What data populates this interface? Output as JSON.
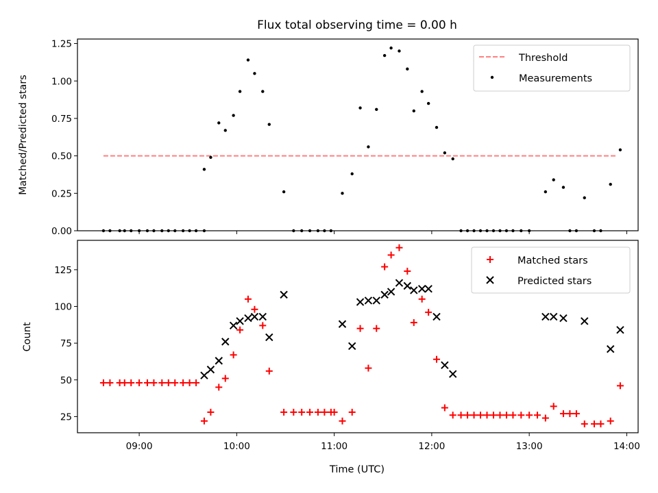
{
  "chart_data": {
    "title": "Flux total observing time = 0.00 h",
    "xlabel": "Time (UTC)",
    "x_ticks": [
      "09:00",
      "10:00",
      "11:00",
      "12:00",
      "13:00",
      "14:00"
    ],
    "xlim": [
      "08:22",
      "14:07"
    ],
    "panels": [
      {
        "type": "scatter",
        "ylabel": "Matched/Predicted stars",
        "ylim": [
          0,
          1.28
        ],
        "y_ticks": [
          "0.00",
          "0.25",
          "0.50",
          "0.75",
          "1.00",
          "1.25"
        ],
        "y_tick_values": [
          0,
          0.25,
          0.5,
          0.75,
          1.0,
          1.25
        ],
        "legend_position": "top-right",
        "threshold": {
          "name": "Threshold",
          "value": 0.5,
          "x_start": "08:38",
          "x_end": "13:54",
          "color": "#ff7f7f"
        },
        "series": [
          {
            "name": "Measurements",
            "color": "#000000",
            "marker": "dot",
            "points": [
              [
                "08:38",
                0.0
              ],
              [
                "08:42",
                0.0
              ],
              [
                "08:48",
                0.0
              ],
              [
                "08:51",
                0.0
              ],
              [
                "08:55",
                0.0
              ],
              [
                "09:00",
                0.0
              ],
              [
                "09:05",
                0.0
              ],
              [
                "09:09",
                0.0
              ],
              [
                "09:14",
                0.0
              ],
              [
                "09:18",
                0.0
              ],
              [
                "09:22",
                0.0
              ],
              [
                "09:27",
                0.0
              ],
              [
                "09:31",
                0.0
              ],
              [
                "09:35",
                0.0
              ],
              [
                "09:40",
                0.0
              ],
              [
                "09:40",
                0.41
              ],
              [
                "09:44",
                0.49
              ],
              [
                "09:49",
                0.72
              ],
              [
                "09:53",
                0.67
              ],
              [
                "09:58",
                0.77
              ],
              [
                "10:02",
                0.93
              ],
              [
                "10:07",
                1.14
              ],
              [
                "10:11",
                1.05
              ],
              [
                "10:16",
                0.93
              ],
              [
                "10:20",
                0.71
              ],
              [
                "10:29",
                0.26
              ],
              [
                "10:35",
                0.0
              ],
              [
                "10:40",
                0.0
              ],
              [
                "10:45",
                0.0
              ],
              [
                "10:50",
                0.0
              ],
              [
                "10:54",
                0.0
              ],
              [
                "10:58",
                0.0
              ],
              [
                "11:05",
                0.25
              ],
              [
                "11:11",
                0.38
              ],
              [
                "11:16",
                0.82
              ],
              [
                "11:21",
                0.56
              ],
              [
                "11:26",
                0.81
              ],
              [
                "11:31",
                1.17
              ],
              [
                "11:35",
                1.22
              ],
              [
                "11:40",
                1.2
              ],
              [
                "11:45",
                1.08
              ],
              [
                "11:49",
                0.8
              ],
              [
                "11:54",
                0.93
              ],
              [
                "11:58",
                0.85
              ],
              [
                "12:03",
                0.69
              ],
              [
                "12:08",
                0.52
              ],
              [
                "12:13",
                0.48
              ],
              [
                "12:18",
                0.0
              ],
              [
                "12:22",
                0.0
              ],
              [
                "12:26",
                0.0
              ],
              [
                "12:30",
                0.0
              ],
              [
                "12:34",
                0.0
              ],
              [
                "12:38",
                0.0
              ],
              [
                "12:42",
                0.0
              ],
              [
                "12:46",
                0.0
              ],
              [
                "12:50",
                0.0
              ],
              [
                "12:55",
                0.0
              ],
              [
                "13:00",
                0.0
              ],
              [
                "13:10",
                0.26
              ],
              [
                "13:15",
                0.34
              ],
              [
                "13:21",
                0.29
              ],
              [
                "13:25",
                0.0
              ],
              [
                "13:29",
                0.0
              ],
              [
                "13:34",
                0.22
              ],
              [
                "13:40",
                0.0
              ],
              [
                "13:44",
                0.0
              ],
              [
                "13:50",
                0.31
              ],
              [
                "13:56",
                0.54
              ]
            ]
          }
        ]
      },
      {
        "type": "scatter",
        "ylabel": "Count",
        "ylim": [
          14,
          145
        ],
        "y_ticks": [
          "25",
          "50",
          "75",
          "100",
          "125"
        ],
        "y_tick_values": [
          25,
          50,
          75,
          100,
          125
        ],
        "legend_position": "top-right",
        "series": [
          {
            "name": "Matched stars",
            "color": "#ff0000",
            "marker": "plus",
            "points": [
              [
                "08:38",
                48
              ],
              [
                "08:42",
                48
              ],
              [
                "08:48",
                48
              ],
              [
                "08:51",
                48
              ],
              [
                "08:55",
                48
              ],
              [
                "09:00",
                48
              ],
              [
                "09:05",
                48
              ],
              [
                "09:09",
                48
              ],
              [
                "09:14",
                48
              ],
              [
                "09:18",
                48
              ],
              [
                "09:22",
                48
              ],
              [
                "09:27",
                48
              ],
              [
                "09:31",
                48
              ],
              [
                "09:35",
                48
              ],
              [
                "09:40",
                22
              ],
              [
                "09:44",
                28
              ],
              [
                "09:49",
                45
              ],
              [
                "09:53",
                51
              ],
              [
                "09:58",
                67
              ],
              [
                "10:02",
                84
              ],
              [
                "10:07",
                105
              ],
              [
                "10:11",
                98
              ],
              [
                "10:16",
                87
              ],
              [
                "10:20",
                56
              ],
              [
                "10:29",
                28
              ],
              [
                "10:35",
                28
              ],
              [
                "10:40",
                28
              ],
              [
                "10:45",
                28
              ],
              [
                "10:50",
                28
              ],
              [
                "10:54",
                28
              ],
              [
                "10:58",
                28
              ],
              [
                "11:00",
                28
              ],
              [
                "11:05",
                22
              ],
              [
                "11:11",
                28
              ],
              [
                "11:16",
                85
              ],
              [
                "11:21",
                58
              ],
              [
                "11:26",
                85
              ],
              [
                "11:31",
                127
              ],
              [
                "11:35",
                135
              ],
              [
                "11:40",
                140
              ],
              [
                "11:45",
                124
              ],
              [
                "11:49",
                89
              ],
              [
                "11:54",
                105
              ],
              [
                "11:58",
                96
              ],
              [
                "12:03",
                64
              ],
              [
                "12:08",
                31
              ],
              [
                "12:13",
                26
              ],
              [
                "12:18",
                26
              ],
              [
                "12:22",
                26
              ],
              [
                "12:26",
                26
              ],
              [
                "12:30",
                26
              ],
              [
                "12:34",
                26
              ],
              [
                "12:38",
                26
              ],
              [
                "12:42",
                26
              ],
              [
                "12:46",
                26
              ],
              [
                "12:50",
                26
              ],
              [
                "12:55",
                26
              ],
              [
                "13:00",
                26
              ],
              [
                "13:05",
                26
              ],
              [
                "13:10",
                24
              ],
              [
                "13:15",
                32
              ],
              [
                "13:21",
                27
              ],
              [
                "13:25",
                27
              ],
              [
                "13:29",
                27
              ],
              [
                "13:34",
                20
              ],
              [
                "13:40",
                20
              ],
              [
                "13:44",
                20
              ],
              [
                "13:50",
                22
              ],
              [
                "13:56",
                46
              ]
            ]
          },
          {
            "name": "Predicted stars",
            "color": "#000000",
            "marker": "x",
            "points": [
              [
                "09:40",
                53
              ],
              [
                "09:44",
                57
              ],
              [
                "09:49",
                63
              ],
              [
                "09:53",
                76
              ],
              [
                "09:58",
                87
              ],
              [
                "10:02",
                90
              ],
              [
                "10:07",
                92
              ],
              [
                "10:11",
                93
              ],
              [
                "10:16",
                93
              ],
              [
                "10:20",
                79
              ],
              [
                "10:29",
                108
              ],
              [
                "11:05",
                88
              ],
              [
                "11:11",
                73
              ],
              [
                "11:16",
                103
              ],
              [
                "11:21",
                104
              ],
              [
                "11:26",
                104
              ],
              [
                "11:31",
                108
              ],
              [
                "11:35",
                110
              ],
              [
                "11:40",
                116
              ],
              [
                "11:45",
                114
              ],
              [
                "11:49",
                111
              ],
              [
                "11:54",
                112
              ],
              [
                "11:58",
                112
              ],
              [
                "12:03",
                93
              ],
              [
                "12:08",
                60
              ],
              [
                "12:13",
                54
              ],
              [
                "13:10",
                93
              ],
              [
                "13:15",
                93
              ],
              [
                "13:21",
                92
              ],
              [
                "13:34",
                90
              ],
              [
                "13:50",
                71
              ],
              [
                "13:56",
                84
              ]
            ]
          }
        ]
      }
    ]
  }
}
